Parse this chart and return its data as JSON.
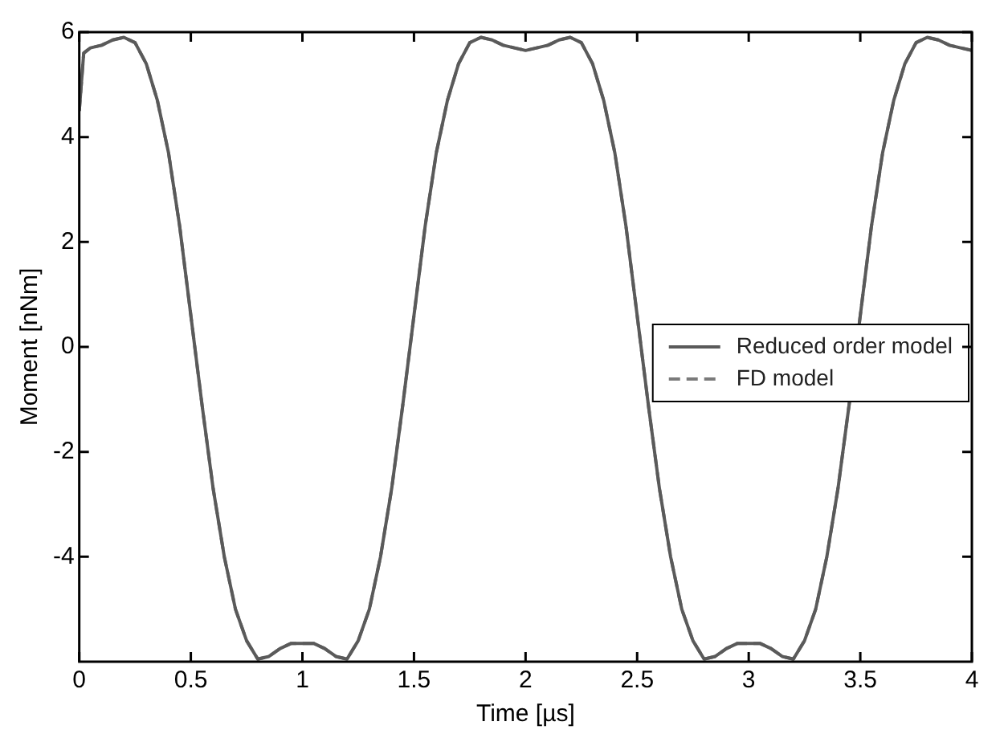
{
  "chart_data": {
    "type": "line",
    "xlabel": "Time [µs]",
    "ylabel": "Moment [nNm]",
    "x": [
      0,
      0.02,
      0.05,
      0.1,
      0.15,
      0.2,
      0.25,
      0.3,
      0.35,
      0.4,
      0.45,
      0.5,
      0.55,
      0.6,
      0.65,
      0.7,
      0.75,
      0.8,
      0.85,
      0.9,
      0.95,
      1,
      1.05,
      1.1,
      1.15,
      1.2,
      1.25,
      1.3,
      1.35,
      1.4,
      1.45,
      1.5,
      1.55,
      1.6,
      1.65,
      1.7,
      1.75,
      1.8,
      1.85,
      1.9,
      1.95,
      2,
      2.05,
      2.1,
      2.15,
      2.2,
      2.25,
      2.3,
      2.35,
      2.4,
      2.45,
      2.5,
      2.55,
      2.6,
      2.65,
      2.7,
      2.75,
      2.8,
      2.85,
      2.9,
      2.95,
      3,
      3.05,
      3.1,
      3.15,
      3.2,
      3.25,
      3.3,
      3.35,
      3.4,
      3.45,
      3.5,
      3.55,
      3.6,
      3.65,
      3.7,
      3.75,
      3.8,
      3.85,
      3.9,
      3.95,
      4
    ],
    "series": [
      {
        "name": "Reduced order model",
        "color": "#5a5a5a",
        "line_style": "solid",
        "values": [
          4.5,
          5.6,
          5.7,
          5.75,
          5.85,
          5.9,
          5.8,
          5.4,
          4.7,
          3.7,
          2.3,
          0.6,
          -1.1,
          -2.7,
          -4,
          -5,
          -5.6,
          -5.95,
          -5.9,
          -5.75,
          -5.65,
          -5.65,
          -5.65,
          -5.75,
          -5.9,
          -5.95,
          -5.6,
          -5,
          -4,
          -2.7,
          -1.1,
          0.6,
          2.3,
          3.7,
          4.7,
          5.4,
          5.8,
          5.9,
          5.85,
          5.75,
          5.7,
          5.65,
          5.7,
          5.75,
          5.85,
          5.9,
          5.8,
          5.4,
          4.7,
          3.7,
          2.3,
          0.6,
          -1.1,
          -2.7,
          -4,
          -5,
          -5.6,
          -5.95,
          -5.9,
          -5.75,
          -5.65,
          -5.65,
          -5.65,
          -5.75,
          -5.9,
          -5.95,
          -5.6,
          -5,
          -4,
          -2.7,
          -1.1,
          0.6,
          2.3,
          3.7,
          4.7,
          5.4,
          5.8,
          5.9,
          5.85,
          5.75,
          5.7,
          5.65
        ]
      },
      {
        "name": "FD model",
        "color": "#7a7a7a",
        "line_style": "dashed",
        "values": [
          4.5,
          5.6,
          5.7,
          5.75,
          5.85,
          5.9,
          5.8,
          5.4,
          4.7,
          3.7,
          2.3,
          0.6,
          -1.1,
          -2.7,
          -4,
          -5,
          -5.6,
          -5.95,
          -5.9,
          -5.75,
          -5.65,
          -5.65,
          -5.65,
          -5.75,
          -5.9,
          -5.95,
          -5.6,
          -5,
          -4,
          -2.7,
          -1.1,
          0.6,
          2.3,
          3.7,
          4.7,
          5.4,
          5.8,
          5.9,
          5.85,
          5.75,
          5.7,
          5.65,
          5.7,
          5.75,
          5.85,
          5.9,
          5.8,
          5.4,
          4.7,
          3.7,
          2.3,
          0.6,
          -1.1,
          -2.7,
          -4,
          -5,
          -5.6,
          -5.95,
          -5.9,
          -5.75,
          -5.65,
          -5.65,
          -5.65,
          -5.75,
          -5.9,
          -5.95,
          -5.6,
          -5,
          -4,
          -2.7,
          -1.1,
          0.6,
          2.3,
          3.7,
          4.7,
          5.4,
          5.8,
          5.9,
          5.85,
          5.75,
          5.7,
          5.65
        ]
      }
    ],
    "xlim": [
      0,
      4
    ],
    "xticks": [
      0,
      0.5,
      1,
      1.5,
      2,
      2.5,
      3,
      3.5,
      4
    ],
    "ylim": [
      -6,
      6
    ],
    "yticks": [
      -4,
      -2,
      0,
      2,
      4,
      6
    ],
    "grid": false,
    "legend": "right",
    "marker": "none"
  }
}
